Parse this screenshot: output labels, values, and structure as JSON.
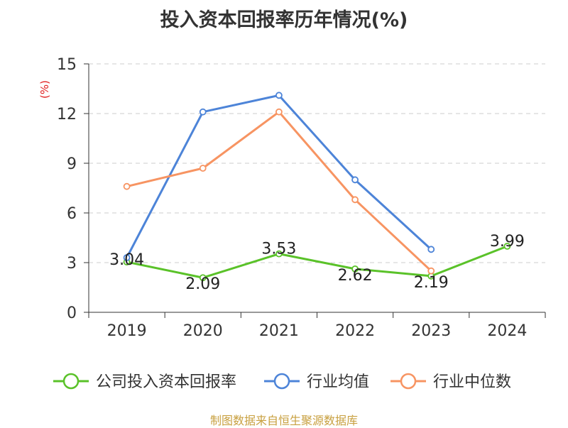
{
  "chart_data": {
    "type": "line",
    "title": "投入资本回报率历年情况(%)",
    "ylabel": "(%)",
    "xlabel": "",
    "ylim": [
      0,
      15
    ],
    "yticks": [
      0,
      3,
      6,
      9,
      12,
      15
    ],
    "categories": [
      "2019",
      "2020",
      "2021",
      "2022",
      "2023",
      "2024"
    ],
    "series": [
      {
        "name": "公司投入资本回报率",
        "color": "#5ac229",
        "values": [
          3.04,
          2.09,
          3.53,
          2.62,
          2.19,
          3.99
        ],
        "labels": [
          "3.04",
          "2.09",
          "3.53",
          "2.62",
          "2.19",
          "3.99"
        ]
      },
      {
        "name": "行业均值",
        "color": "#4d84d8",
        "values": [
          3.3,
          12.1,
          13.1,
          8.0,
          3.8,
          null
        ]
      },
      {
        "name": "行业中位数",
        "color": "#f79462",
        "values": [
          7.6,
          8.7,
          12.1,
          6.8,
          2.5,
          null
        ]
      }
    ],
    "grid": true,
    "legend": "bottom"
  },
  "source": "制图数据来自恒生聚源数据库"
}
